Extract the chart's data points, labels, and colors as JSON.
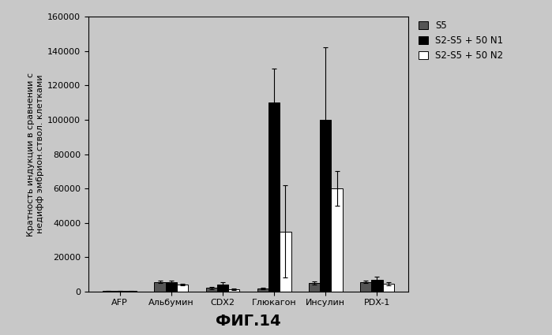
{
  "categories": [
    "AFP",
    "Альбумин",
    "CDX2",
    "Глюкагон",
    "Инсулин",
    "PDX-1"
  ],
  "series": [
    {
      "label": "S5",
      "color": "#555555",
      "hatch": "",
      "values": [
        400,
        5500,
        2000,
        1800,
        5000,
        5500
      ],
      "errors": [
        150,
        600,
        600,
        400,
        900,
        700
      ]
    },
    {
      "label": "S2-S5 + 50 N1",
      "color": "#000000",
      "hatch": "",
      "values": [
        400,
        5500,
        4000,
        110000,
        100000,
        7000
      ],
      "errors": [
        150,
        900,
        1200,
        20000,
        42000,
        1500
      ]
    },
    {
      "label": "S2-S5 + 50 N2",
      "color": "#ffffff",
      "hatch": "",
      "values": [
        150,
        4000,
        1200,
        35000,
        60000,
        4500
      ],
      "errors": [
        80,
        500,
        300,
        27000,
        10000,
        900
      ]
    }
  ],
  "ylabel": "Кратность индукции в сравнении с\nнедифф эмбрион.ствол. клетками",
  "xlabel": "ФИГ.14",
  "ylim": [
    0,
    160000
  ],
  "yticks": [
    0,
    20000,
    40000,
    60000,
    80000,
    100000,
    120000,
    140000,
    160000
  ],
  "bar_width": 0.22,
  "background_color": "#c8c8c8",
  "plot_bg_color": "#c8c8c8",
  "ylabel_fontsize": 8,
  "xlabel_fontsize": 14,
  "axis_fontsize": 8,
  "legend_fontsize": 8.5
}
